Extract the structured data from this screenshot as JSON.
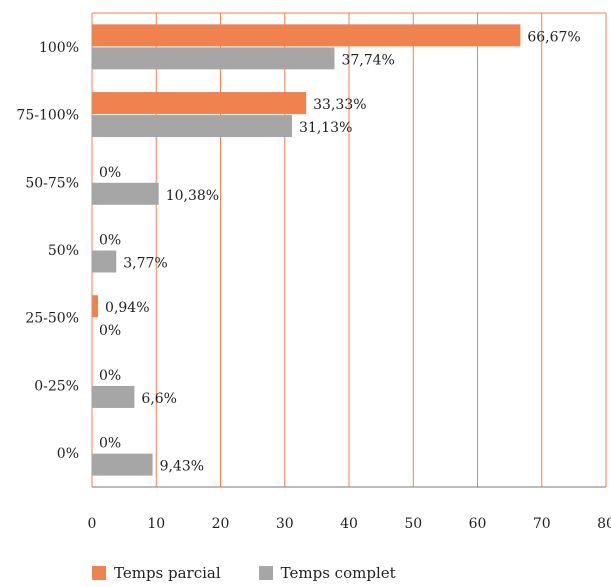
{
  "chart_data": {
    "type": "bar",
    "orientation": "horizontal",
    "categories": [
      "100%",
      "75-100%",
      "50-75%",
      "50%",
      "25-50%",
      "0-25%",
      "0%"
    ],
    "series": [
      {
        "name": "Temps parcial",
        "color": "#f0824f",
        "values": [
          66.67,
          33.33,
          0,
          0,
          0.94,
          0,
          0
        ],
        "labels": [
          "66,67%",
          "33,33%",
          "0%",
          "0%",
          "0,94%",
          "0%",
          "0%"
        ]
      },
      {
        "name": "Temps complet",
        "color": "#a6a6a6",
        "values": [
          37.74,
          31.13,
          10.38,
          3.77,
          0,
          6.6,
          9.43
        ],
        "labels": [
          "37,74%",
          "31,13%",
          "10,38%",
          "3,77%",
          "0%",
          "6,6%",
          "9,43%"
        ]
      }
    ],
    "xlim": [
      0,
      80
    ],
    "xticks": [
      "0",
      "10",
      "20",
      "30",
      "40",
      "50",
      "60",
      "70",
      "80"
    ],
    "grid": true,
    "grid_color": "#f0824f",
    "legend_position": "bottom-left",
    "title": "",
    "xlabel": "",
    "ylabel": ""
  },
  "legend": {
    "items": [
      {
        "label": "Temps parcial",
        "color": "#f0824f"
      },
      {
        "label": "Temps complet",
        "color": "#a6a6a6"
      }
    ]
  }
}
